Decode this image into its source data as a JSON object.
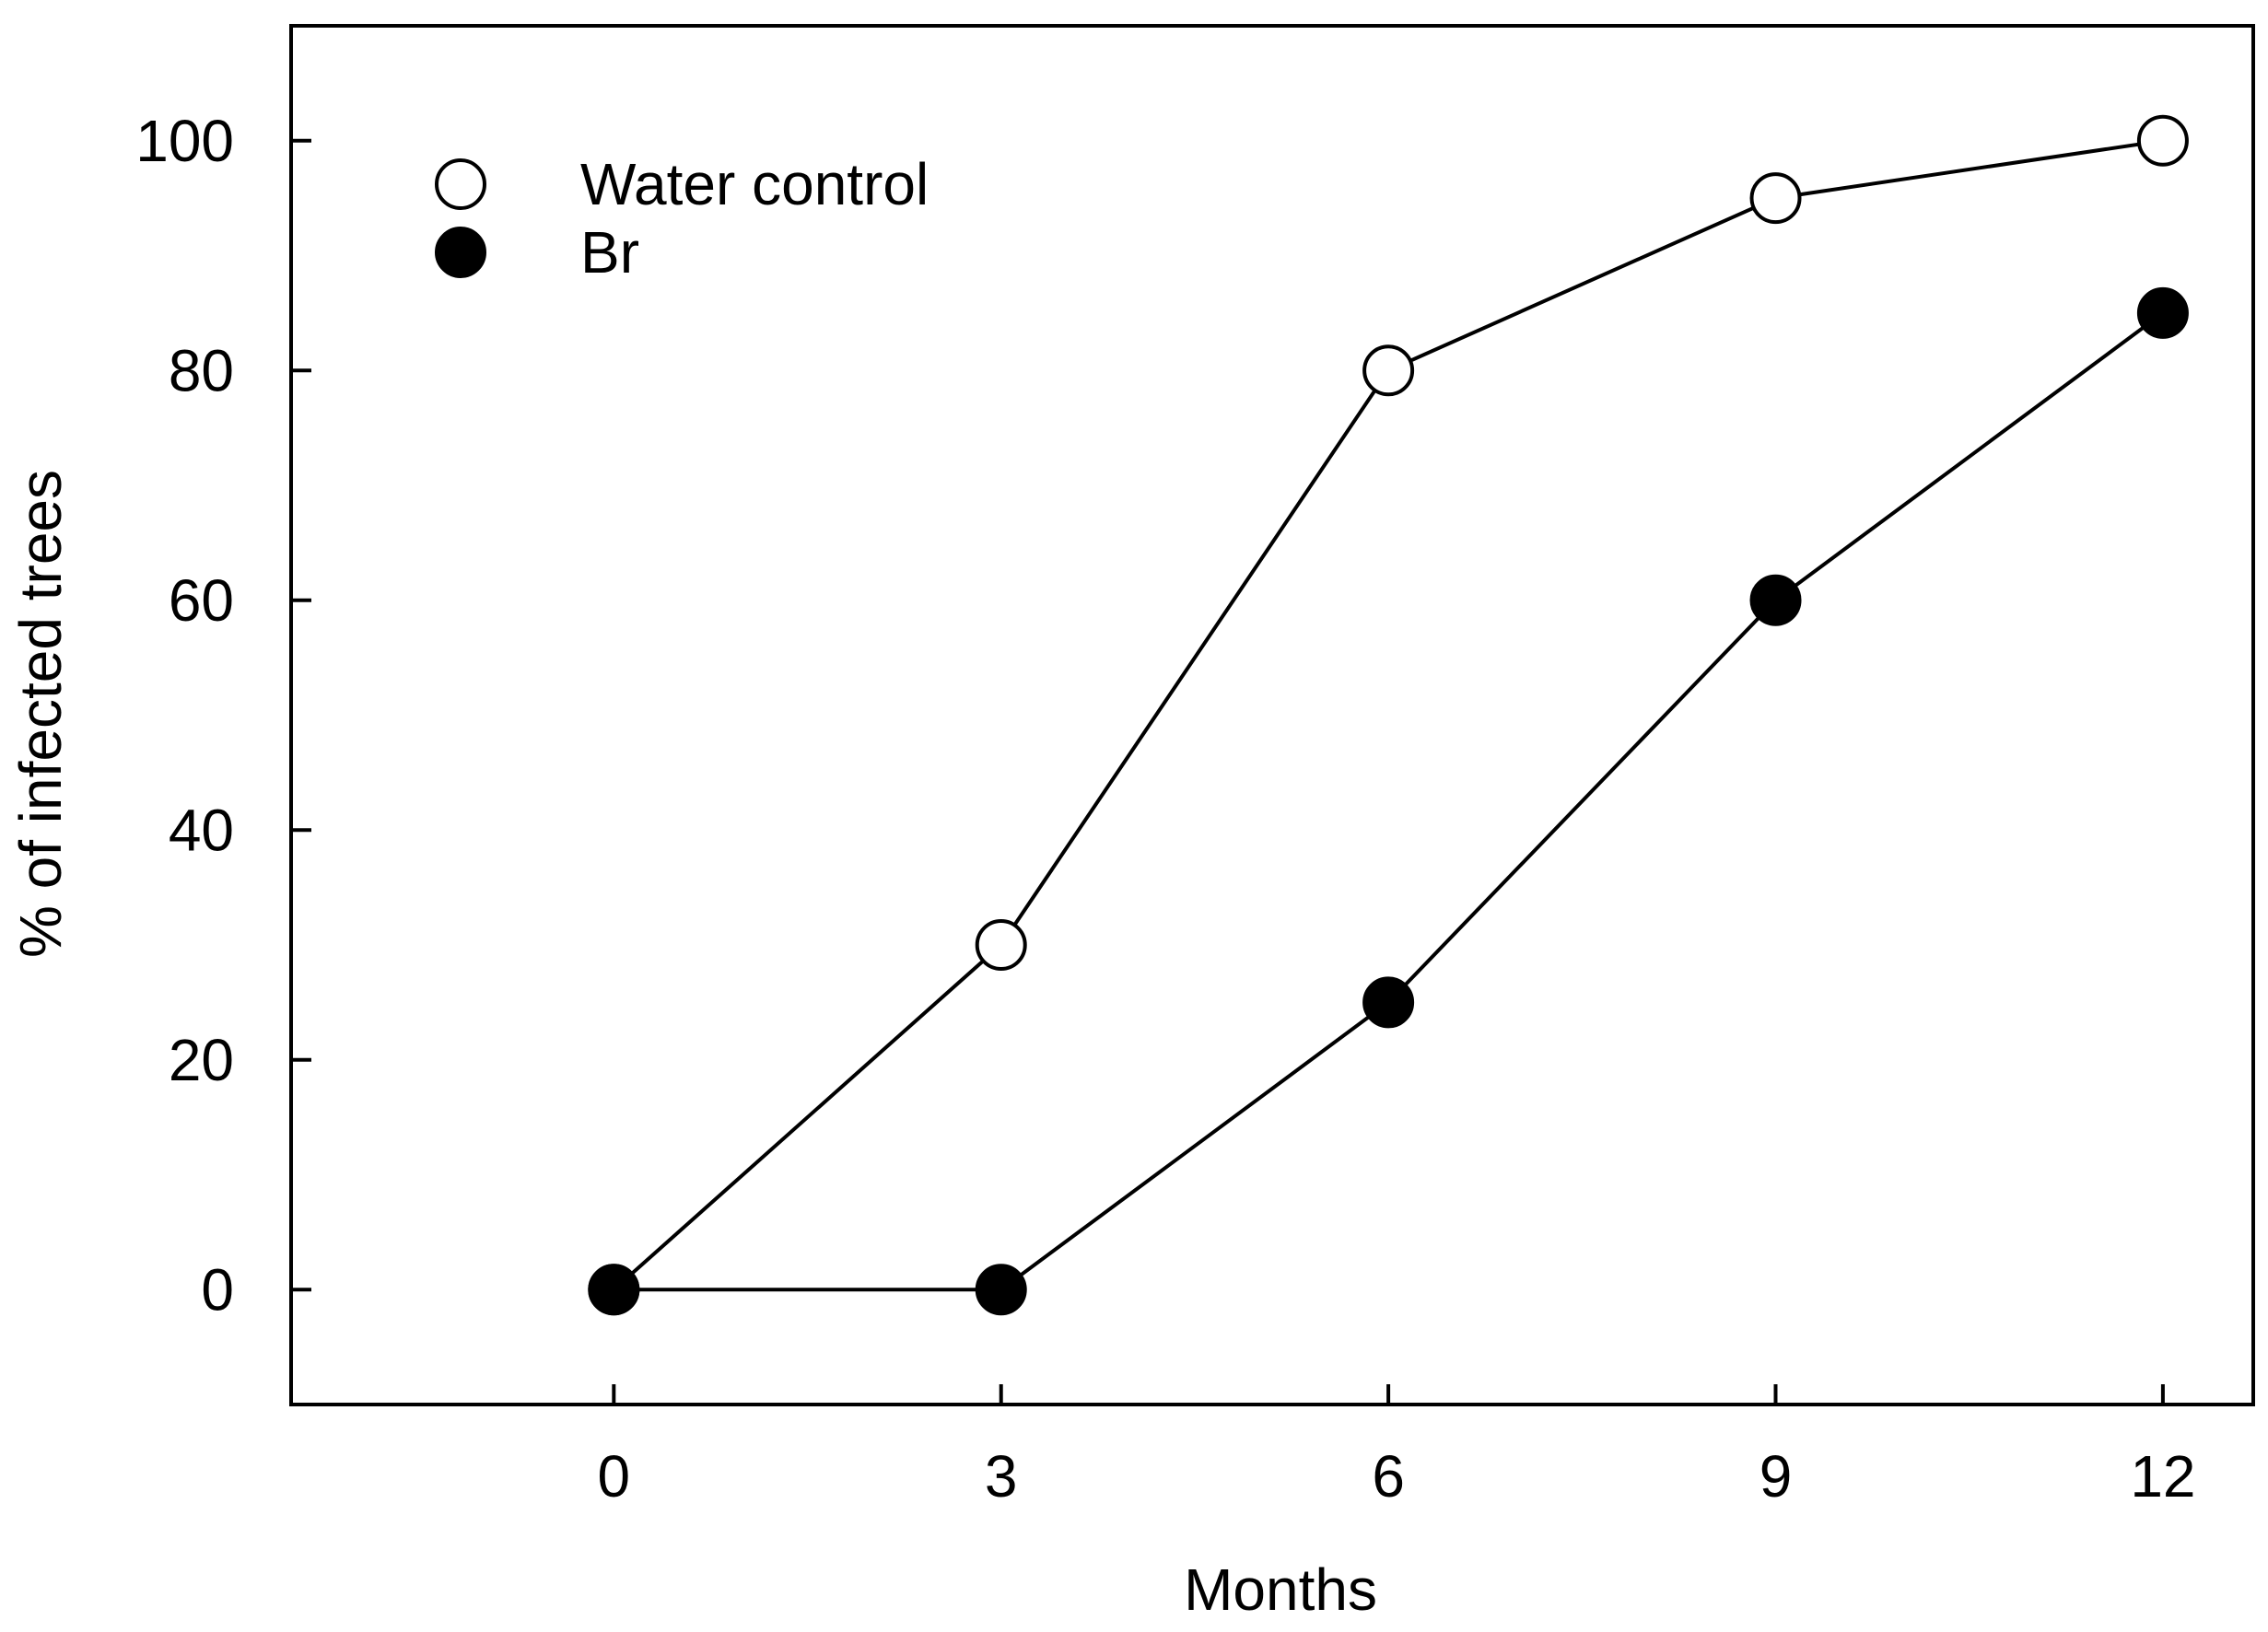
{
  "chart_data": {
    "type": "line",
    "title": "",
    "xlabel": "Months",
    "ylabel": "% of infected trees",
    "xlim": [
      -2.5,
      12.7
    ],
    "ylim": [
      -10,
      110
    ],
    "xticks": [
      0,
      3,
      6,
      9,
      12
    ],
    "yticks": [
      0,
      20,
      40,
      60,
      80,
      100
    ],
    "grid": false,
    "legend_position": "top-left",
    "colors": {
      "line": "#000000",
      "axis": "#000000",
      "background": "#ffffff"
    },
    "series": [
      {
        "name": "Water control",
        "marker": "open-circle",
        "x": [
          0,
          3,
          6,
          9,
          12
        ],
        "y": [
          0,
          30,
          80,
          95,
          100
        ]
      },
      {
        "name": "Br",
        "marker": "filled-circle",
        "x": [
          0,
          3,
          6,
          9,
          12
        ],
        "y": [
          0,
          0,
          25,
          60,
          85
        ]
      }
    ]
  }
}
